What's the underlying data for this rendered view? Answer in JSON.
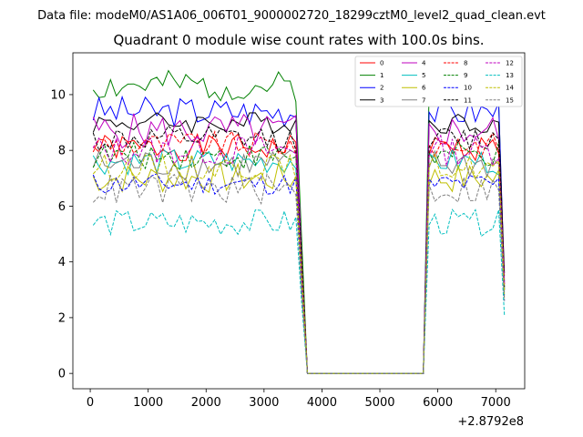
{
  "header": {
    "supertitle": "Data file: modeM0/AS1A06_006T01_9000002720_18299cztM0_level2_quad_clean.evt"
  },
  "chart_data": {
    "type": "line",
    "title": "Quadrant 0 module wise count rates with 100.0s bins.",
    "xlabel": "",
    "ylabel": "",
    "x_offset_label": "+2.8792e8",
    "xlim": [
      -300,
      7500
    ],
    "ylim": [
      -0.55,
      11.5
    ],
    "xticks": [
      0,
      1000,
      2000,
      3000,
      4000,
      5000,
      6000,
      7000
    ],
    "xtick_labels": [
      "0",
      "1000",
      "2000",
      "3000",
      "4000",
      "5000",
      "6000",
      "7000"
    ],
    "yticks": [
      0,
      2,
      4,
      6,
      8,
      10
    ],
    "ytick_labels": [
      "0",
      "2",
      "4",
      "6",
      "8",
      "10"
    ],
    "legend": {
      "placement": "top-right",
      "ncol": 4
    },
    "gap_start": 3750,
    "gap_end": 5750,
    "series": [
      {
        "name": "0",
        "color": "#ff0000",
        "dash": "solid",
        "base": 8.1,
        "amp": 0.3,
        "seed": 1,
        "end": 3.5
      },
      {
        "name": "1",
        "color": "#008000",
        "dash": "solid",
        "base": 10.3,
        "amp": 0.35,
        "seed": 2,
        "end": 3.0
      },
      {
        "name": "2",
        "color": "#0000ff",
        "dash": "solid",
        "base": 9.4,
        "amp": 0.35,
        "seed": 3,
        "end": 3.3
      },
      {
        "name": "3",
        "color": "#000000",
        "dash": "solid",
        "base": 9.0,
        "amp": 0.25,
        "seed": 4,
        "end": 3.6
      },
      {
        "name": "4",
        "color": "#bf00bf",
        "dash": "solid",
        "base": 8.7,
        "amp": 0.4,
        "seed": 5,
        "end": 3.2
      },
      {
        "name": "5",
        "color": "#00bfbf",
        "dash": "solid",
        "base": 7.6,
        "amp": 0.3,
        "seed": 6,
        "end": 2.8
      },
      {
        "name": "6",
        "color": "#bfbf00",
        "dash": "solid",
        "base": 7.0,
        "amp": 0.35,
        "seed": 7,
        "end": 2.7
      },
      {
        "name": "7",
        "color": "#808080",
        "dash": "solid",
        "base": 7.5,
        "amp": 0.35,
        "seed": 8,
        "end": 3.0
      },
      {
        "name": "8",
        "color": "#ff0000",
        "dash": "dashed",
        "base": 8.2,
        "amp": 0.3,
        "seed": 9,
        "end": 3.2
      },
      {
        "name": "9",
        "color": "#008000",
        "dash": "dashed",
        "base": 7.8,
        "amp": 0.3,
        "seed": 10,
        "end": 3.0
      },
      {
        "name": "10",
        "color": "#0000ff",
        "dash": "dashed",
        "base": 6.8,
        "amp": 0.25,
        "seed": 11,
        "end": 2.6
      },
      {
        "name": "11",
        "color": "#000000",
        "dash": "dashed",
        "base": 8.4,
        "amp": 0.3,
        "seed": 12,
        "end": 3.1
      },
      {
        "name": "12",
        "color": "#bf00bf",
        "dash": "dashed",
        "base": 8.0,
        "amp": 0.35,
        "seed": 13,
        "end": 3.2
      },
      {
        "name": "13",
        "color": "#00bfbf",
        "dash": "dashed",
        "base": 5.4,
        "amp": 0.3,
        "seed": 14,
        "end": 2.1
      },
      {
        "name": "14",
        "color": "#bfbf00",
        "dash": "dashed",
        "base": 7.4,
        "amp": 0.3,
        "seed": 15,
        "end": 2.9
      },
      {
        "name": "15",
        "color": "#808080",
        "dash": "dashed",
        "base": 6.6,
        "amp": 0.35,
        "seed": 16,
        "end": 2.6
      }
    ]
  }
}
